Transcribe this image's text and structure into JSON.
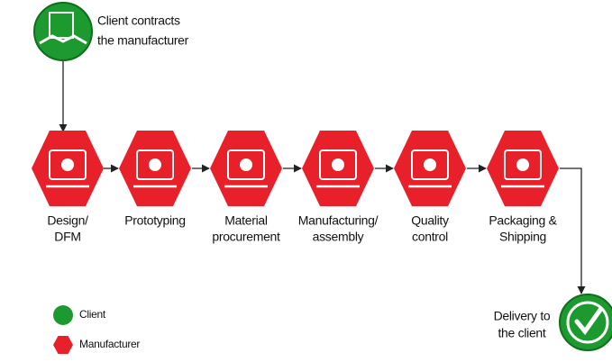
{
  "start": {
    "lines": [
      "Client contracts",
      "the manufacturer"
    ]
  },
  "steps": [
    {
      "lines": [
        "Design/",
        "DFM"
      ]
    },
    {
      "lines": [
        "Prototyping"
      ]
    },
    {
      "lines": [
        "Material",
        "procurement"
      ]
    },
    {
      "lines": [
        "Manufacturing/",
        "assembly"
      ]
    },
    {
      "lines": [
        "Quality",
        "control"
      ]
    },
    {
      "lines": [
        "Packaging &",
        "Shipping"
      ]
    }
  ],
  "end": {
    "lines": [
      "Delivery to",
      "the client"
    ]
  },
  "legend": [
    {
      "label": "Client"
    },
    {
      "label": "Manufacturer"
    }
  ]
}
